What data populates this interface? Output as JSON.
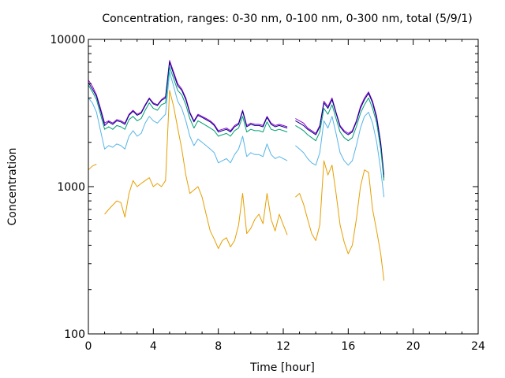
{
  "chart_data": {
    "type": "line",
    "title": "Concentration, ranges: 0-30 nm, 0-100 nm, 0-300 nm, total (5/9/1)",
    "xlabel": "Time [hour]",
    "ylabel": "Concentration",
    "xlim": [
      0,
      24
    ],
    "ylim": [
      100,
      10000
    ],
    "yscale": "log",
    "grid": false,
    "legend": "none",
    "x_ticks": [
      0,
      4,
      8,
      12,
      16,
      20,
      24
    ],
    "x_tick_labels": [
      "0",
      "4",
      "8",
      "12",
      "16",
      "20",
      "24"
    ],
    "y_ticks": [
      100,
      1000,
      10000
    ],
    "y_tick_labels": [
      "100",
      "1000",
      "10000"
    ],
    "x": [
      0,
      0.25,
      0.5,
      0.75,
      1.0,
      1.25,
      1.5,
      1.75,
      2.0,
      2.25,
      2.5,
      2.75,
      3.0,
      3.25,
      3.5,
      3.75,
      4.0,
      4.25,
      4.5,
      4.75,
      5.0,
      5.25,
      5.5,
      5.75,
      6.0,
      6.25,
      6.5,
      6.75,
      7.0,
      7.25,
      7.5,
      7.75,
      8.0,
      8.25,
      8.5,
      8.75,
      9.0,
      9.25,
      9.5,
      9.75,
      10.0,
      10.25,
      10.5,
      10.75,
      11.0,
      11.25,
      11.5,
      11.75,
      12.0,
      12.25,
      12.5,
      12.75,
      13.0,
      13.25,
      13.5,
      13.75,
      14.0,
      14.25,
      14.5,
      14.75,
      15.0,
      15.25,
      15.5,
      15.75,
      16.0,
      16.25,
      16.5,
      16.75,
      17.0,
      17.25,
      17.5,
      17.75,
      18.0,
      18.2
    ],
    "series": [
      {
        "color": "#9400d3",
        "values": [
          5300,
          4800,
          4200,
          3400,
          2700,
          2800,
          2700,
          2850,
          2800,
          2700,
          3100,
          3300,
          3100,
          3200,
          3600,
          4000,
          3700,
          3600,
          3900,
          4100,
          7200,
          6000,
          5000,
          4600,
          4000,
          3200,
          2800,
          3100,
          3000,
          2900,
          2800,
          2650,
          2400,
          2450,
          2500,
          2400,
          2600,
          2700,
          3300,
          2600,
          2700,
          2650,
          2650,
          2600,
          3000,
          2700,
          2600,
          2650,
          2600,
          2550,
          null,
          2900,
          2800,
          2700,
          2500,
          2400,
          2300,
          2600,
          3800,
          3500,
          4000,
          3200,
          2600,
          2400,
          2300,
          2400,
          2800,
          3500,
          4000,
          4400,
          3800,
          3000,
          2000,
          1200
        ]
      },
      {
        "color": "#000080",
        "values": [
          5100,
          4600,
          4100,
          3300,
          2600,
          2750,
          2650,
          2800,
          2750,
          2650,
          3050,
          3250,
          3050,
          3150,
          3550,
          3950,
          3650,
          3550,
          3850,
          4000,
          7000,
          5800,
          4850,
          4500,
          3900,
          3150,
          2750,
          3050,
          2950,
          2850,
          2750,
          2600,
          2350,
          2400,
          2450,
          2350,
          2550,
          2650,
          3250,
          2550,
          2650,
          2600,
          2600,
          2550,
          2950,
          2650,
          2550,
          2600,
          2550,
          2500,
          null,
          2800,
          2700,
          2600,
          2450,
          2350,
          2250,
          2550,
          3700,
          3400,
          3900,
          3150,
          2550,
          2350,
          2250,
          2350,
          2750,
          3400,
          3900,
          4300,
          3700,
          2900,
          1950,
          1150
        ]
      },
      {
        "color": "#009e73",
        "values": [
          4900,
          4400,
          3900,
          3100,
          2450,
          2550,
          2450,
          2600,
          2550,
          2450,
          2850,
          3000,
          2800,
          2900,
          3300,
          3700,
          3400,
          3300,
          3600,
          3700,
          6500,
          5400,
          4500,
          4200,
          3600,
          2900,
          2500,
          2800,
          2700,
          2600,
          2500,
          2400,
          2200,
          2250,
          2300,
          2200,
          2400,
          2500,
          3000,
          2350,
          2450,
          2400,
          2400,
          2350,
          2750,
          2450,
          2400,
          2450,
          2400,
          2350,
          null,
          2600,
          2500,
          2400,
          2250,
          2150,
          2050,
          2350,
          3400,
          3100,
          3600,
          2900,
          2350,
          2150,
          2050,
          2150,
          2550,
          3150,
          3600,
          4000,
          3400,
          2700,
          1800,
          1100
        ]
      },
      {
        "color": "#56b4e9",
        "values": [
          4000,
          3700,
          3200,
          2400,
          1800,
          1900,
          1850,
          1950,
          1900,
          1800,
          2200,
          2400,
          2200,
          2300,
          2700,
          3000,
          2800,
          2700,
          2900,
          3100,
          6000,
          4800,
          3800,
          3400,
          2800,
          2200,
          1900,
          2100,
          2000,
          1900,
          1800,
          1700,
          1450,
          1500,
          1550,
          1450,
          1650,
          1800,
          2200,
          1600,
          1700,
          1650,
          1650,
          1600,
          1950,
          1650,
          1550,
          1600,
          1550,
          1500,
          null,
          1900,
          1800,
          1700,
          1550,
          1450,
          1400,
          1700,
          2800,
          2500,
          3000,
          2300,
          1700,
          1500,
          1400,
          1500,
          1900,
          2500,
          3000,
          3200,
          2700,
          2000,
          1300,
          850
        ]
      },
      {
        "color": "#e69f00",
        "values": [
          1300,
          1380,
          1420,
          null,
          650,
          700,
          750,
          800,
          780,
          620,
          900,
          1100,
          1000,
          1050,
          1100,
          1150,
          1000,
          1050,
          1000,
          1100,
          4500,
          3500,
          2500,
          1800,
          1200,
          900,
          950,
          1000,
          850,
          650,
          500,
          440,
          380,
          430,
          450,
          390,
          430,
          550,
          900,
          480,
          520,
          600,
          650,
          560,
          900,
          600,
          500,
          650,
          550,
          470,
          null,
          850,
          900,
          760,
          600,
          480,
          430,
          550,
          1500,
          1200,
          1400,
          900,
          550,
          420,
          350,
          400,
          600,
          1000,
          1300,
          1250,
          700,
          500,
          350,
          230
        ]
      }
    ]
  }
}
